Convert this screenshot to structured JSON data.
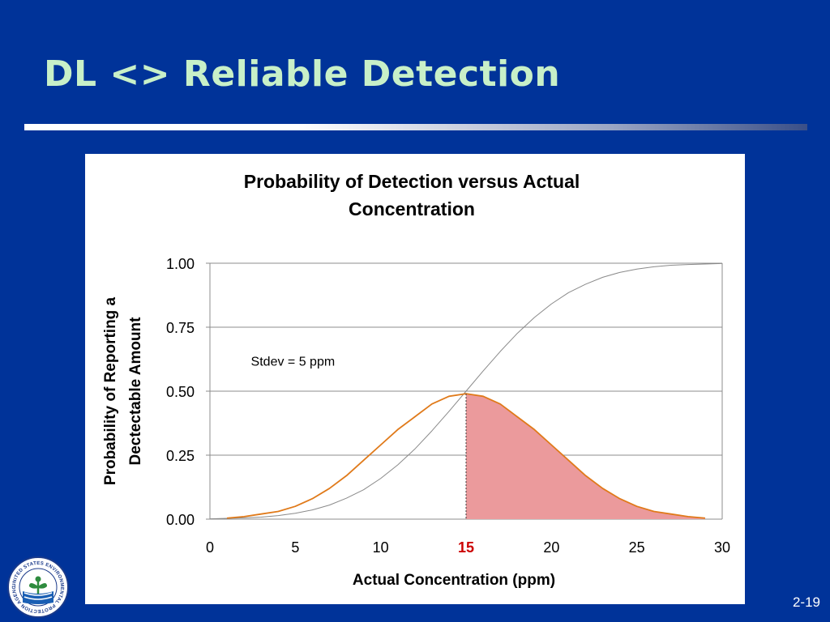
{
  "slide": {
    "title": "DL <> Reliable Detection",
    "number": "2-19",
    "logo_text": "UNITED STATES ENVIRONMENTAL PROTECTION AGENCY"
  },
  "colors": {
    "background": "#003399",
    "title": "#c8f0c8",
    "pdf_curve": "#e07a1a",
    "cdf_curve": "#8a8a8a",
    "shade": "#eb9a9c",
    "highlight_tick": "#cc0000"
  },
  "chart_data": {
    "type": "line",
    "title_lines": [
      "Probability of Detection versus Actual",
      "Concentration"
    ],
    "xlabel": "Actual Concentration (ppm)",
    "ylabel_lines": [
      "Probability of Reporting a",
      "Dectectable Amount"
    ],
    "xlim": [
      0,
      30
    ],
    "ylim": [
      0,
      1
    ],
    "x_ticks": [
      0,
      5,
      10,
      15,
      20,
      25,
      30
    ],
    "x_tick_labels": [
      "0",
      "5",
      "10",
      "15",
      "20",
      "25",
      "30"
    ],
    "highlighted_tick": 15,
    "y_ticks": [
      0,
      0.25,
      0.5,
      0.75,
      1.0
    ],
    "y_tick_labels": [
      "0.00",
      "0.25",
      "0.50",
      "0.75",
      "1.00"
    ],
    "grid": "horizontal",
    "annotation": "Stdev = 5 ppm",
    "vertical_line_x": 15,
    "shaded_region": {
      "series": "pdf",
      "from_x": 15,
      "to_x": 29
    },
    "series": [
      {
        "id": "pdf",
        "color": "#e07a1a",
        "x": [
          1,
          2,
          3,
          4,
          5,
          6,
          7,
          8,
          9,
          10,
          11,
          12,
          13,
          14,
          15,
          16,
          17,
          18,
          19,
          20,
          21,
          22,
          23,
          24,
          25,
          26,
          27,
          28,
          29
        ],
        "y": [
          0.004,
          0.01,
          0.02,
          0.03,
          0.05,
          0.08,
          0.12,
          0.17,
          0.23,
          0.29,
          0.35,
          0.4,
          0.45,
          0.48,
          0.49,
          0.48,
          0.45,
          0.4,
          0.35,
          0.29,
          0.23,
          0.17,
          0.12,
          0.08,
          0.05,
          0.03,
          0.02,
          0.01,
          0.004
        ]
      },
      {
        "id": "cdf",
        "color": "#8a8a8a",
        "x": [
          0,
          1,
          2,
          3,
          4,
          5,
          6,
          7,
          8,
          9,
          10,
          11,
          12,
          13,
          14,
          15,
          16,
          17,
          18,
          19,
          20,
          21,
          22,
          23,
          24,
          25,
          26,
          27,
          28,
          29,
          30
        ],
        "y": [
          0.001,
          0.003,
          0.005,
          0.008,
          0.014,
          0.023,
          0.036,
          0.055,
          0.082,
          0.115,
          0.159,
          0.212,
          0.274,
          0.345,
          0.421,
          0.5,
          0.579,
          0.655,
          0.726,
          0.788,
          0.841,
          0.885,
          0.918,
          0.945,
          0.964,
          0.977,
          0.986,
          0.992,
          0.995,
          0.997,
          0.999
        ]
      }
    ]
  }
}
